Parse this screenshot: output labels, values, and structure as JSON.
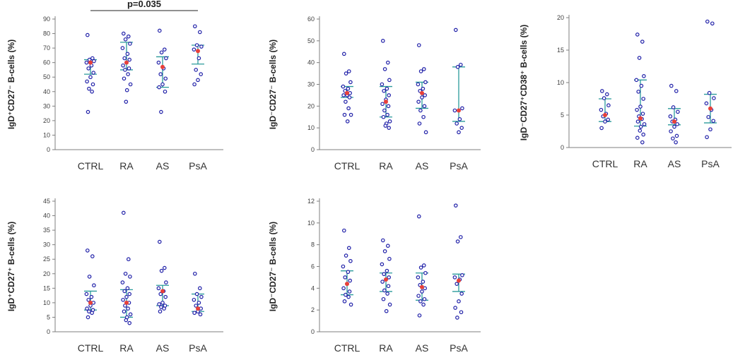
{
  "chart_data": [
    {
      "type": "scatter",
      "ylabel": "IgD⁺CD27⁻ B-cells (%)",
      "categories": [
        "CTRL",
        "RA",
        "AS",
        "PsA"
      ],
      "ylim": [
        0,
        90
      ],
      "yticks": [
        0,
        10,
        20,
        30,
        40,
        50,
        60,
        70,
        80,
        90
      ],
      "annotation": {
        "text": "p=0.035",
        "from": "CTRL",
        "to": "PsA",
        "y": 95
      },
      "series": [
        {
          "group": "CTRL",
          "values": [
            79,
            63,
            62,
            61,
            60,
            58,
            56,
            53,
            50,
            47,
            45,
            42,
            40,
            26
          ],
          "median": 60,
          "q1": 52,
          "q3": 62
        },
        {
          "group": "RA",
          "values": [
            80,
            78,
            76,
            73,
            70,
            66,
            63,
            62,
            60,
            58,
            56,
            55,
            52,
            49,
            45,
            41,
            33
          ],
          "median": 60,
          "q1": 55,
          "q3": 74
        },
        {
          "group": "AS",
          "values": [
            82,
            69,
            67,
            63,
            60,
            56,
            52,
            49,
            45,
            43,
            40,
            26
          ],
          "median": 57,
          "q1": 43,
          "q3": 64
        },
        {
          "group": "PsA",
          "values": [
            85,
            81,
            72,
            71,
            69,
            63,
            55,
            52,
            48,
            45
          ],
          "median": 68,
          "q1": 59,
          "q3": 72
        }
      ]
    },
    {
      "type": "scatter",
      "ylabel": "IgD⁻CD27⁻ B-cells (%)",
      "categories": [
        "CTRL",
        "RA",
        "AS",
        "PsA"
      ],
      "ylim": [
        0,
        60
      ],
      "yticks": [
        0,
        10,
        20,
        30,
        40,
        50,
        60
      ],
      "series": [
        {
          "group": "CTRL",
          "values": [
            44,
            36,
            35,
            31,
            29,
            28,
            27,
            26,
            25,
            25,
            24,
            22,
            19,
            16,
            16,
            13
          ],
          "median": 26,
          "q1": 24,
          "q3": 29
        },
        {
          "group": "RA",
          "values": [
            50,
            40,
            37,
            32,
            30,
            28,
            27,
            25,
            23,
            21,
            20,
            18,
            16,
            15,
            13,
            12,
            11,
            10
          ],
          "median": 22,
          "q1": 15,
          "q3": 29
        },
        {
          "group": "AS",
          "values": [
            48,
            37,
            36,
            31,
            30,
            28,
            27,
            25,
            24,
            22,
            20,
            18,
            15,
            12,
            8
          ],
          "median": 26,
          "q1": 19,
          "q3": 31
        },
        {
          "group": "PsA",
          "values": [
            55,
            39,
            38,
            19,
            18,
            14,
            12,
            10,
            8
          ],
          "median": 18,
          "q1": 13,
          "q3": 38
        }
      ]
    },
    {
      "type": "scatter",
      "ylabel": "IgD⁻CD27⁺CD38⁺ B-cells (%)",
      "categories": [
        "CTRL",
        "RA",
        "AS",
        "PsA"
      ],
      "ylim": [
        0,
        20
      ],
      "yticks": [
        0,
        5,
        10,
        15,
        20
      ],
      "series": [
        {
          "group": "CTRL",
          "values": [
            8.7,
            8.2,
            7.6,
            6.5,
            5.8,
            5.2,
            4.8,
            4.3,
            4.0,
            3.0
          ],
          "median": 5.0,
          "q1": 4.0,
          "q3": 7.5
        },
        {
          "group": "RA",
          "values": [
            17.4,
            16.3,
            13.8,
            11.0,
            10.4,
            9.5,
            8.6,
            7.5,
            6.3,
            5.8,
            5.2,
            4.8,
            4.4,
            4.0,
            3.6,
            3.2,
            2.6,
            2.0,
            1.5,
            0.8
          ],
          "median": 4.5,
          "q1": 3.3,
          "q3": 10.4
        },
        {
          "group": "AS",
          "values": [
            9.5,
            8.7,
            6.2,
            5.5,
            4.8,
            4.3,
            4.0,
            3.6,
            3.2,
            2.5,
            1.8,
            1.4,
            0.8
          ],
          "median": 4.0,
          "q1": 3.5,
          "q3": 6.0
        },
        {
          "group": "PsA",
          "values": [
            19.4,
            19.1,
            8.4,
            7.6,
            6.8,
            5.8,
            4.7,
            4.1,
            2.8,
            1.6
          ],
          "median": 6.0,
          "q1": 3.8,
          "q3": 8.2
        }
      ]
    },
    {
      "type": "scatter",
      "ylabel": "IgD⁺CD27⁺ B-cells (%)",
      "categories": [
        "CTRL",
        "RA",
        "AS",
        "PsA"
      ],
      "ylim": [
        0,
        45
      ],
      "yticks": [
        0,
        5,
        10,
        15,
        20,
        25,
        30,
        35,
        40,
        45
      ],
      "series": [
        {
          "group": "CTRL",
          "values": [
            28,
            26,
            19,
            16,
            13,
            12,
            11,
            10,
            9,
            8,
            7.5,
            7,
            6.5,
            5
          ],
          "median": 10,
          "q1": 7.5,
          "q3": 14
        },
        {
          "group": "RA",
          "values": [
            41,
            25,
            20,
            19,
            17,
            15,
            14,
            13,
            12,
            11,
            10,
            9,
            8,
            7,
            6,
            5,
            4,
            3
          ],
          "median": 10,
          "q1": 5,
          "q3": 14.5
        },
        {
          "group": "AS",
          "values": [
            31,
            22,
            21,
            17,
            15,
            14,
            13,
            12,
            10,
            9.5,
            9,
            8.5,
            8,
            7
          ],
          "median": 14,
          "q1": 9,
          "q3": 16
        },
        {
          "group": "PsA",
          "values": [
            20,
            15,
            13,
            12,
            11,
            10,
            9,
            8,
            7,
            6.5,
            6
          ],
          "median": 8,
          "q1": 7,
          "q3": 13
        }
      ]
    },
    {
      "type": "scatter",
      "ylabel": "IgD⁻CD27⁻ B-cells (%)",
      "categories": [
        "CTRL",
        "RA",
        "AS",
        "PsA"
      ],
      "ylim": [
        0,
        12
      ],
      "yticks": [
        0,
        2,
        4,
        6,
        8,
        10,
        12
      ],
      "series": [
        {
          "group": "CTRL",
          "values": [
            9.3,
            7.7,
            7.0,
            6.5,
            6.0,
            5.5,
            5.0,
            4.7,
            4.4,
            4.0,
            3.7,
            3.4,
            3.2,
            2.8,
            2.5
          ],
          "median": 4.4,
          "q1": 3.4,
          "q3": 5.6
        },
        {
          "group": "RA",
          "values": [
            8.4,
            7.9,
            7.4,
            6.7,
            6.2,
            5.6,
            5.3,
            5.0,
            4.8,
            4.6,
            4.2,
            3.8,
            3.5,
            3.0,
            2.5,
            1.9
          ],
          "median": 4.8,
          "q1": 3.7,
          "q3": 5.4
        },
        {
          "group": "AS",
          "values": [
            10.6,
            6.1,
            5.9,
            5.4,
            5.0,
            4.6,
            4.3,
            4.0,
            3.7,
            3.3,
            3.0,
            2.8,
            2.5,
            1.5
          ],
          "median": 4.1,
          "q1": 2.9,
          "q3": 5.4
        },
        {
          "group": "PsA",
          "values": [
            11.6,
            8.7,
            8.3,
            5.2,
            5.0,
            4.8,
            4.4,
            3.5,
            2.8,
            2.2,
            1.8,
            1.3
          ],
          "median": 4.7,
          "q1": 3.7,
          "q3": 5.3
        }
      ]
    }
  ]
}
